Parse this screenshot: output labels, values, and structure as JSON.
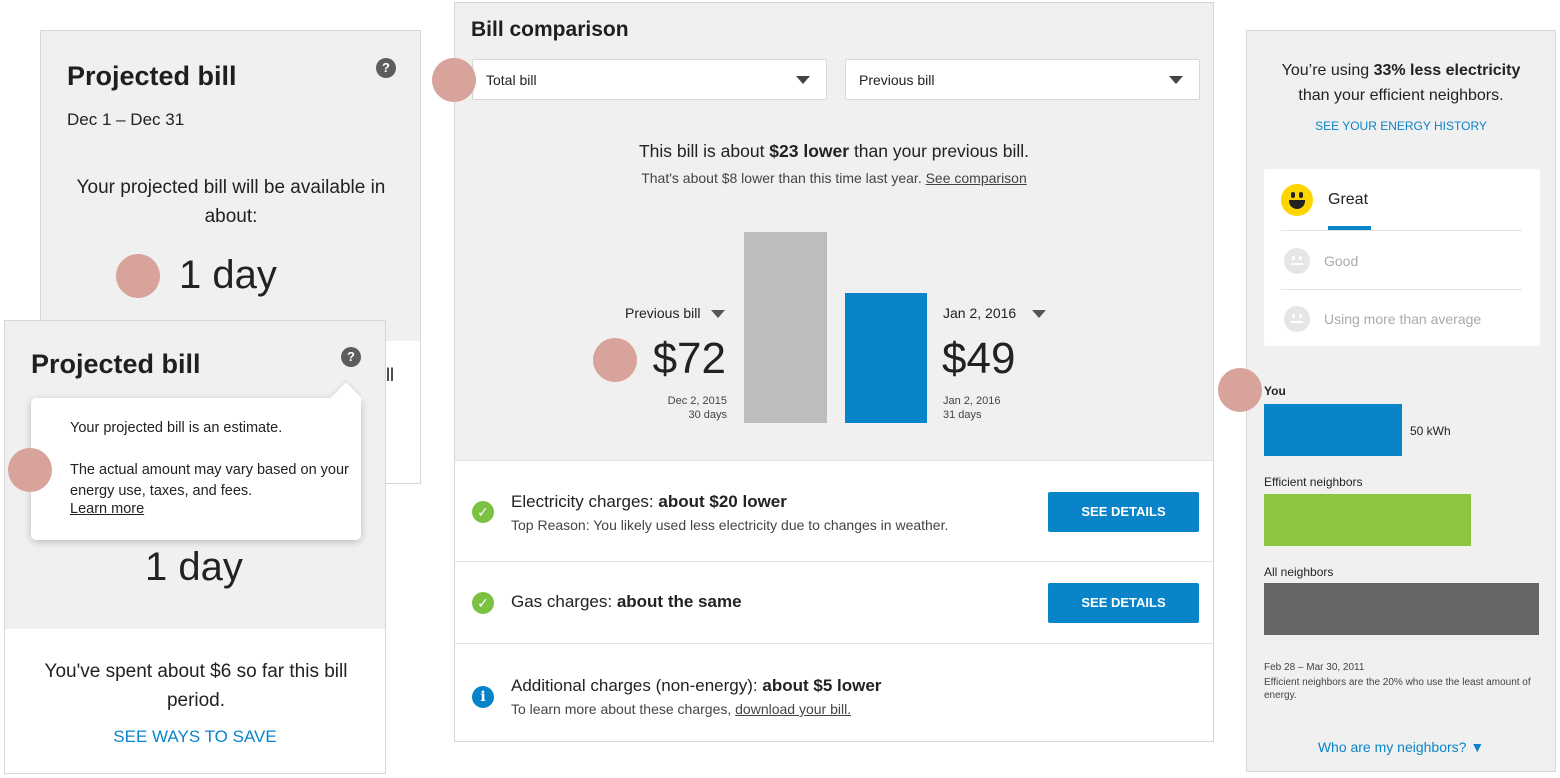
{
  "projected_back": {
    "title": "Projected bill",
    "help": "?",
    "dates": "Dec 1 – Dec 31",
    "available": "Your projected bill will be available in about:",
    "countdown": "1 day",
    "peek_text": "ll"
  },
  "projected_front": {
    "title": "Projected bill",
    "help": "?",
    "countdown": "1 day",
    "spent": "You've spent about $6 so far this bill period.",
    "ways_link": "SEE WAYS TO SAVE"
  },
  "tooltip": {
    "line1": "Your projected bill is an estimate.",
    "line2": "The actual amount may vary based on your energy use, taxes, and fees.",
    "learn_more": "Learn more"
  },
  "bill_comparison": {
    "title": "Bill comparison",
    "select_left": "Total bill",
    "select_right": "Previous bill",
    "headline_pre": "This bill is about ",
    "headline_bold": "$23 lower",
    "headline_post": " than your previous bill.",
    "sub_text": "That's about $8 lower than this time last year. ",
    "sub_link": "See comparison",
    "previous": {
      "label": "Previous bill",
      "amount": "$72",
      "date": "Dec 2, 2015",
      "days": "30 days",
      "value": 72
    },
    "current": {
      "label": "Jan 2, 2016",
      "amount": "$49",
      "date": "Jan 2, 2016",
      "days": "31 days",
      "value": 49
    },
    "rows": [
      {
        "title_pre": "Electricity charges: ",
        "title_bold": "about $20 lower",
        "sub": "Top Reason: You likely used less electricity due to changes in weather.",
        "button": "SEE DETAILS"
      },
      {
        "title_pre": "Gas charges: ",
        "title_bold": "about the same",
        "button": "SEE DETAILS"
      },
      {
        "title_pre": "Additional charges (non-energy): ",
        "title_bold": "about $5 lower",
        "sub_pre": "To learn more about these charges, ",
        "sub_link": "download your bill."
      }
    ]
  },
  "neighbors": {
    "using_pre": "You’re using ",
    "using_bold": "33% less electricity",
    "using_post": "than your efficient neighbors.",
    "history_link": "SEE YOUR ENERGY HISTORY",
    "rating": {
      "great": "Great",
      "good": "Good",
      "more": "Using more than average"
    },
    "you_label": "You",
    "you_value": "50 kWh",
    "efficient_label": "Efficient neighbors",
    "all_label": "All neighbors",
    "period": "Feb 28 – Mar 30, 2011",
    "footnote": "Efficient neighbors are the 20% who use the least amount of energy.",
    "who_link": "Who are my neighbors? ▼"
  },
  "colors": {
    "accent": "#0a84c8",
    "green": "#7cc242",
    "efficient_bar": "#8cc63f",
    "all_bar": "#666666",
    "previous_bar": "#bdbdbd",
    "marker": "#d7a39b"
  }
}
